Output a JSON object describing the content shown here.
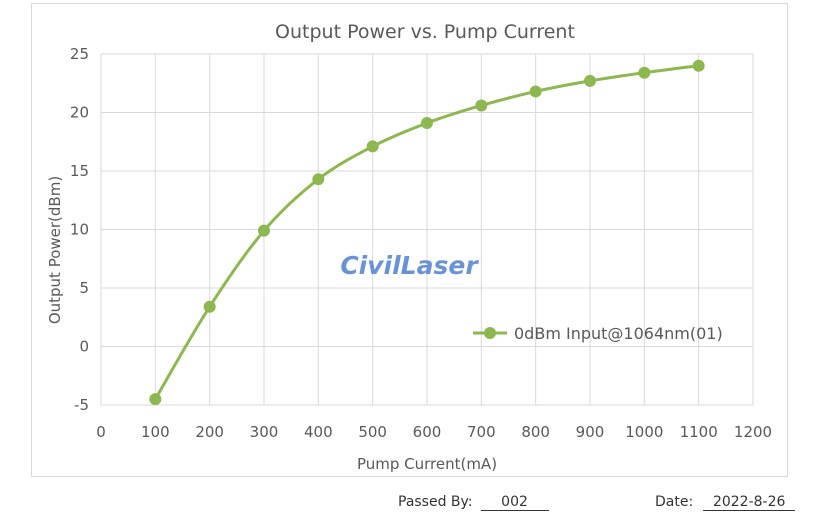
{
  "chart_data": {
    "type": "line",
    "title": "Output Power vs. Pump Current",
    "xlabel": "Pump Current(mA)",
    "ylabel": "Output Power(dBm)",
    "xlim": [
      0,
      1200
    ],
    "ylim": [
      -5,
      25
    ],
    "xticks": [
      "0",
      "100",
      "200",
      "300",
      "400",
      "500",
      "600",
      "700",
      "800",
      "900",
      "1000",
      "1100",
      "1200"
    ],
    "yticks": [
      "-5",
      "0",
      "5",
      "10",
      "15",
      "20",
      "25"
    ],
    "grid": true,
    "legend_position": "right",
    "watermark": "CivilLaser",
    "series": [
      {
        "name": "0dBm Input@1064nm(01)",
        "color": "#8db84f",
        "x": [
          100,
          200,
          300,
          400,
          500,
          600,
          700,
          800,
          900,
          1000,
          1100
        ],
        "y": [
          -4.5,
          3.4,
          9.9,
          14.3,
          17.1,
          19.1,
          20.6,
          21.8,
          22.7,
          23.4,
          24.0
        ]
      }
    ]
  },
  "footer": {
    "passed_label": "Passed By:",
    "passed_value": "002",
    "date_label": "Date:",
    "date_value": "2022-8-26"
  }
}
